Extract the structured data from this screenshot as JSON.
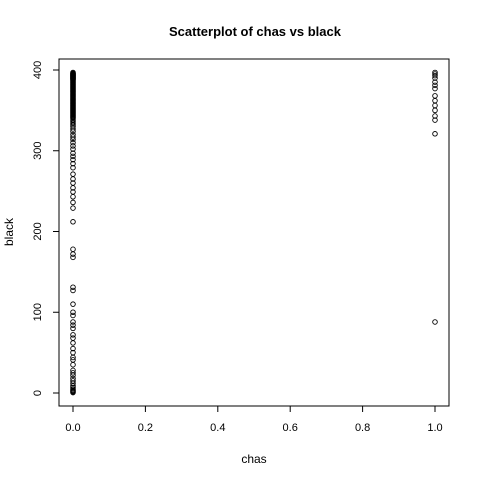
{
  "chart_data": {
    "type": "scatter",
    "title": "Scatterplot of chas vs black",
    "xlabel": "chas",
    "ylabel": "black",
    "xlim": [
      0,
      1
    ],
    "ylim": [
      0,
      400
    ],
    "xticks": [
      "0.0",
      "0.2",
      "0.4",
      "0.6",
      "0.8",
      "1.0"
    ],
    "yticks": [
      "0",
      "100",
      "200",
      "300",
      "400"
    ],
    "grid": false,
    "series": [
      {
        "x_value": 0,
        "y_values": [
          396.9,
          396.0,
          395.5,
          395.0,
          394.5,
          394.0,
          393.5,
          393.0,
          392.5,
          392.0,
          391.5,
          391.0,
          390.5,
          390.0,
          389.5,
          389.0,
          388.5,
          388.0,
          387.0,
          386.0,
          385.0,
          384.0,
          383.0,
          382.0,
          381.0,
          380.0,
          379.0,
          378.0,
          377.0,
          376.0,
          375.0,
          374.0,
          373.0,
          372.0,
          371.0,
          370.0,
          369.0,
          368.0,
          367.0,
          366.0,
          365.0,
          364.0,
          363.0,
          362.0,
          361.0,
          360.0,
          359.0,
          358.0,
          357.0,
          356.0,
          355.0,
          354.0,
          353.0,
          352.0,
          351.0,
          350.0,
          349.0,
          348.0,
          347.0,
          346.0,
          345.0,
          344.0,
          343.0,
          342.0,
          341.0,
          340.0,
          338.0,
          336.0,
          334.0,
          332.0,
          330.0,
          327.0,
          324.0,
          320.0,
          317.0,
          314.0,
          310.0,
          306.0,
          302.0,
          297.0,
          293.0,
          289.0,
          284.0,
          279.0,
          271.0,
          265.0,
          260.0,
          254.0,
          249.0,
          243.0,
          236.0,
          229.0,
          212.0,
          178.0,
          172.0,
          168.0,
          131.0,
          127.0,
          110.0,
          100.0,
          96.0,
          88.0,
          84.0,
          80.0,
          72.0,
          68.0,
          62.0,
          55.0,
          50.0,
          44.0,
          41.0,
          35.0,
          28.0,
          25.0,
          22.0,
          18.0,
          15.0,
          12.0,
          9.0,
          7.0,
          5.0,
          3.5,
          2.5,
          1.5,
          0.5
        ]
      },
      {
        "x_value": 1,
        "y_values": [
          396.9,
          395.0,
          393.0,
          390.0,
          385.0,
          381.0,
          377.0,
          368.0,
          362.0,
          356.0,
          350.0,
          343.0,
          338.0,
          321.0,
          88.0
        ]
      }
    ]
  }
}
